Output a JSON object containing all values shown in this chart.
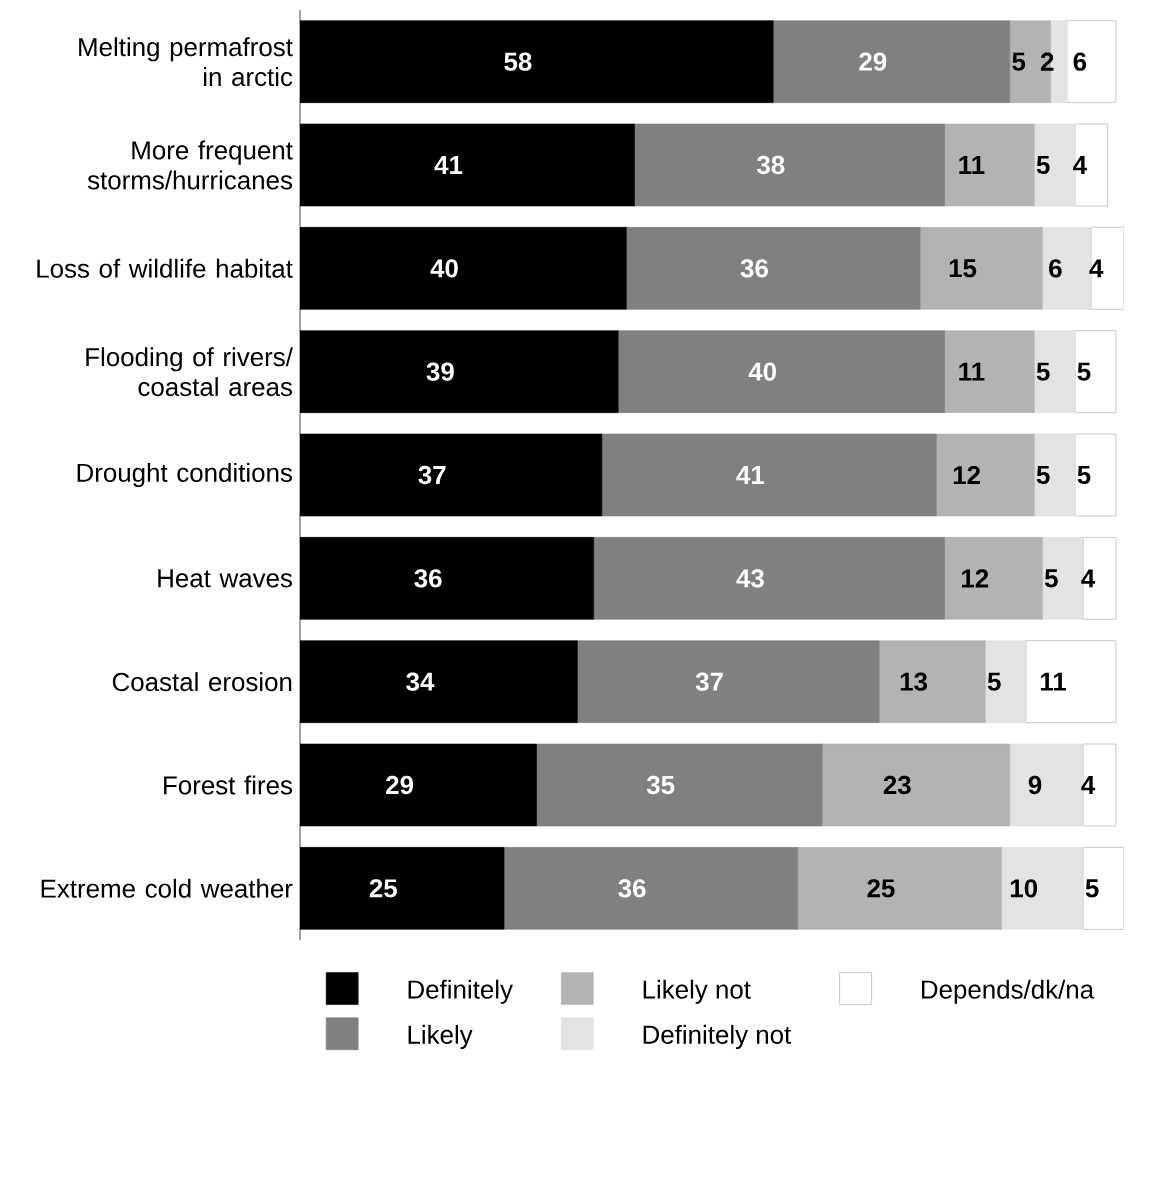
{
  "chart_data": {
    "type": "bar",
    "orientation": "horizontal",
    "stacked": true,
    "data_labels": true,
    "legend": "bottom",
    "tick_labels": "y",
    "categories": [
      "Melting permafrost in arctic",
      "More frequent storms/hurricanes",
      "Loss of wildlife habitat",
      "Flooding of rivers/ coastal areas",
      "Drought conditions",
      "Heat waves",
      "Coastal erosion",
      "Forest fires",
      "Extreme cold weather"
    ],
    "series": [
      {
        "name": "Definitely",
        "color": "#000000",
        "values": [
          58,
          41,
          40,
          39,
          37,
          36,
          34,
          29,
          25
        ]
      },
      {
        "name": "Likely",
        "color": "#808080",
        "values": [
          29,
          38,
          36,
          40,
          41,
          43,
          37,
          35,
          36
        ]
      },
      {
        "name": "Likely not",
        "color": "#b3b3b3",
        "values": [
          5,
          11,
          15,
          11,
          12,
          12,
          13,
          23,
          25
        ]
      },
      {
        "name": "Definitely not",
        "color": "#e3e3e3",
        "values": [
          2,
          5,
          6,
          5,
          5,
          5,
          5,
          9,
          10
        ]
      },
      {
        "name": "Depends/dk/na",
        "color": "#ffffff",
        "values": [
          6,
          4,
          4,
          5,
          5,
          4,
          11,
          4,
          5
        ]
      }
    ]
  }
}
